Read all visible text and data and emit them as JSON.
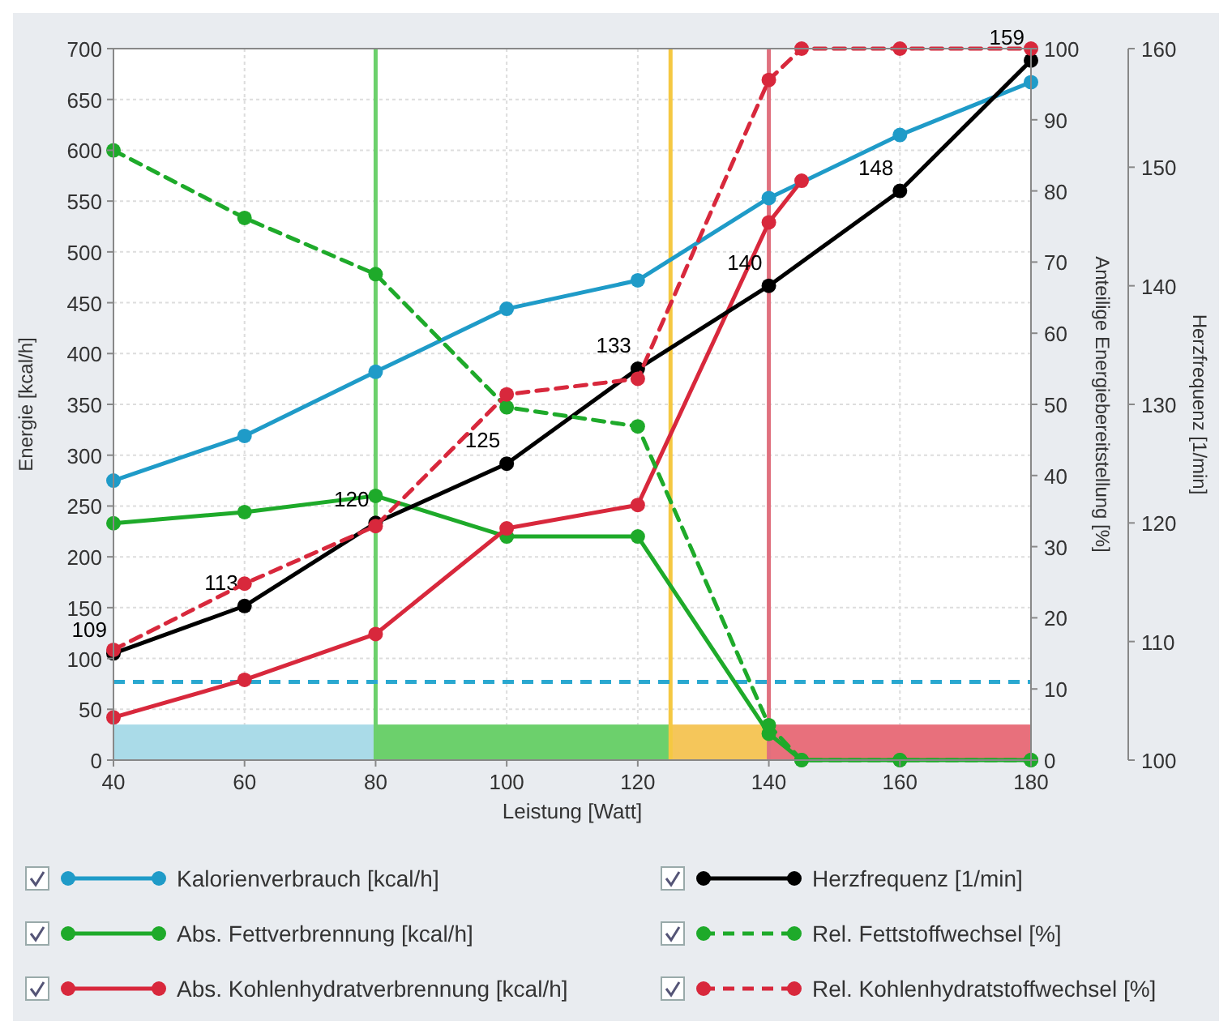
{
  "chart_data": {
    "type": "line",
    "xlabel": "Leistung [Watt]",
    "ylabel": "Energie [kcal/h]",
    "y2label": "Anteilige Energiebereitstellung [%]",
    "y3label": "Herzfrequenz [1/min]",
    "xlim": [
      40,
      180
    ],
    "xticks": [
      40,
      60,
      80,
      100,
      120,
      140,
      160,
      180
    ],
    "ylim": [
      0,
      700
    ],
    "yticks": [
      0,
      50,
      100,
      150,
      200,
      250,
      300,
      350,
      400,
      450,
      500,
      550,
      600,
      650,
      700
    ],
    "y2lim": [
      0,
      100
    ],
    "y2ticks": [
      0,
      10,
      20,
      30,
      40,
      50,
      60,
      70,
      80,
      90,
      100
    ],
    "y3lim": [
      100,
      160
    ],
    "y3ticks": [
      100,
      110,
      120,
      130,
      140,
      150,
      160
    ],
    "grid": true,
    "legend": "bottom",
    "marker": "circle",
    "series": [
      {
        "name": "Kalorienverbrauch [kcal/h]",
        "color": "#1f9bc8",
        "x": [
          40,
          60,
          80,
          100,
          120,
          140,
          160,
          180
        ],
        "values": [
          275,
          319,
          382,
          444,
          472,
          553,
          615,
          667
        ]
      },
      {
        "name": "Abs. Fettverbrennung [kcal/h]",
        "color": "#1eaa2a",
        "x": [
          40,
          60,
          80,
          100,
          120,
          140,
          145,
          160,
          180
        ],
        "values": [
          233,
          244,
          260,
          220,
          220,
          26,
          0,
          0,
          0
        ]
      },
      {
        "name": "Abs. Kohlenhydratverbrennung [kcal/h]",
        "color": "#d8283c",
        "x": [
          40,
          60,
          80,
          100,
          120,
          140,
          145
        ],
        "values": [
          42,
          79,
          124,
          228,
          251,
          529,
          570
        ]
      },
      {
        "name": "Herzfrequenz [1/min]",
        "color": "#000000",
        "axis": "y3",
        "x": [
          40,
          60,
          80,
          100,
          120,
          140,
          160,
          180
        ],
        "values": [
          109,
          113,
          120,
          125,
          133,
          140,
          148,
          159
        ],
        "value_labels": [
          "109",
          "113",
          "120",
          "125",
          "133",
          "140",
          "148",
          "159"
        ]
      },
      {
        "name": "Rel. Fettstoffwechsel [%]",
        "color": "#1eaa2a",
        "axis": "y2",
        "line_style": "dashed",
        "x": [
          40,
          60,
          80,
          100,
          120,
          140,
          145,
          160,
          180
        ],
        "values": [
          85.7,
          76.2,
          68.3,
          49.6,
          46.9,
          4.9,
          0,
          0,
          0
        ]
      },
      {
        "name": "Rel. Kohlenhydratstoffwechsel [%]",
        "color": "#d8283c",
        "axis": "y2",
        "line_style": "dashed",
        "x": [
          40,
          60,
          80,
          100,
          120,
          140,
          145,
          160,
          180
        ],
        "values": [
          15.5,
          24.8,
          32.9,
          51.4,
          53.6,
          95.6,
          100,
          100,
          100
        ]
      }
    ],
    "ref_lines": [
      {
        "axis": "x",
        "value": 80,
        "color": "#6cd06c"
      },
      {
        "axis": "x",
        "value": 125,
        "color": "#f5c842"
      },
      {
        "axis": "x",
        "value": 140,
        "color": "#e0707e"
      },
      {
        "axis": "y",
        "value": 77,
        "color": "#2aa8d0",
        "line_style": "dashed"
      }
    ],
    "bands": [
      {
        "axis": "x",
        "from": 40,
        "to": 80,
        "color": "#aadbe8"
      },
      {
        "axis": "x",
        "from": 80,
        "to": 125,
        "color": "#6cd06c"
      },
      {
        "axis": "x",
        "from": 125,
        "to": 140,
        "color": "#f5c65a"
      },
      {
        "axis": "x",
        "from": 140,
        "to": 180,
        "color": "#e8707c"
      }
    ]
  }
}
